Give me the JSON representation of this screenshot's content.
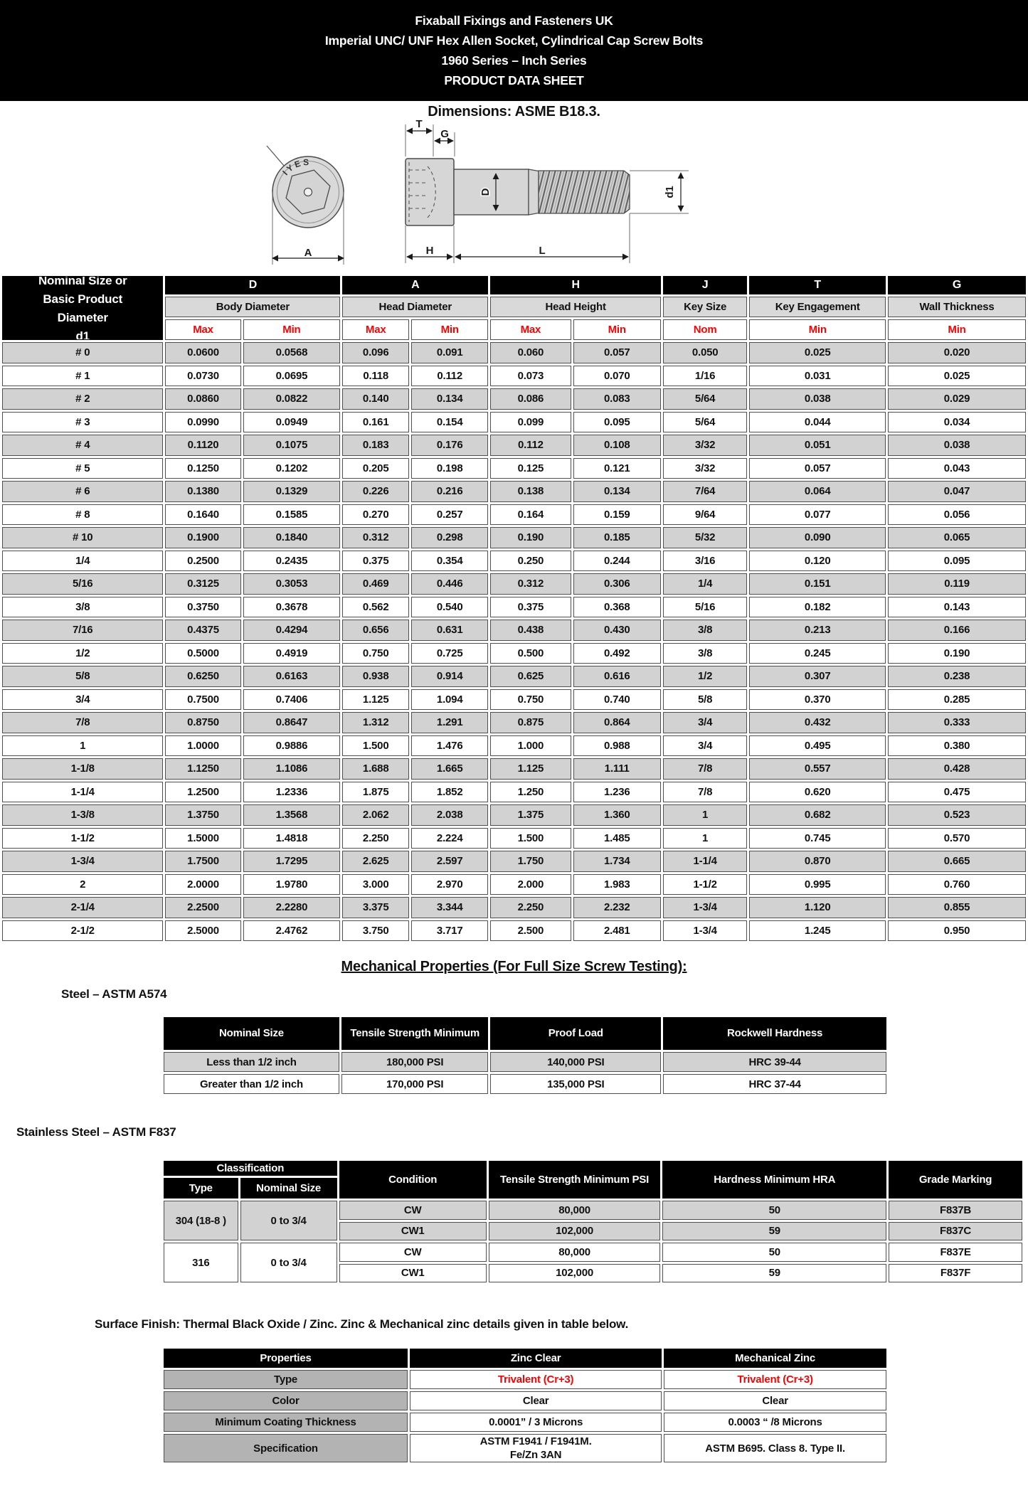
{
  "banner": {
    "lines": [
      "Fixaball Fixings and Fasteners UK",
      "Imperial UNC/ UNF Hex Allen Socket, Cylindrical Cap Screw Bolts",
      "1960 Series – Inch Series",
      "PRODUCT DATA SHEET"
    ]
  },
  "dimensions_note": "Dimensions: ASME B18.3.",
  "drawing": {
    "head_stamp": "IYES",
    "labels": {
      "t": "T",
      "g": "G",
      "d": "D",
      "d1": "d1",
      "a": "A",
      "h": "H",
      "l": "L"
    }
  },
  "main_table": {
    "corner_lines": [
      "Nominal Size or",
      "Basic Product",
      "Diameter",
      "d1"
    ],
    "groups": [
      {
        "letter": "D",
        "name": "Body Diameter",
        "subs": [
          "Max",
          "Min"
        ]
      },
      {
        "letter": "A",
        "name": "Head Diameter",
        "subs": [
          "Max",
          "Min"
        ]
      },
      {
        "letter": "H",
        "name": "Head Height",
        "subs": [
          "Max",
          "Min"
        ]
      },
      {
        "letter": "J",
        "name": "Key Size",
        "subs": [
          "Nom"
        ]
      },
      {
        "letter": "T",
        "name": "Key Engagement",
        "subs": [
          "Min"
        ]
      },
      {
        "letter": "G",
        "name": "Wall Thickness",
        "subs": [
          "Min"
        ]
      }
    ],
    "rows": [
      [
        "# 0",
        "0.0600",
        "0.0568",
        "0.096",
        "0.091",
        "0.060",
        "0.057",
        "0.050",
        "0.025",
        "0.020"
      ],
      [
        "# 1",
        "0.0730",
        "0.0695",
        "0.118",
        "0.112",
        "0.073",
        "0.070",
        "1/16",
        "0.031",
        "0.025"
      ],
      [
        "# 2",
        "0.0860",
        "0.0822",
        "0.140",
        "0.134",
        "0.086",
        "0.083",
        "5/64",
        "0.038",
        "0.029"
      ],
      [
        "# 3",
        "0.0990",
        "0.0949",
        "0.161",
        "0.154",
        "0.099",
        "0.095",
        "5/64",
        "0.044",
        "0.034"
      ],
      [
        "# 4",
        "0.1120",
        "0.1075",
        "0.183",
        "0.176",
        "0.112",
        "0.108",
        "3/32",
        "0.051",
        "0.038"
      ],
      [
        "# 5",
        "0.1250",
        "0.1202",
        "0.205",
        "0.198",
        "0.125",
        "0.121",
        "3/32",
        "0.057",
        "0.043"
      ],
      [
        "# 6",
        "0.1380",
        "0.1329",
        "0.226",
        "0.216",
        "0.138",
        "0.134",
        "7/64",
        "0.064",
        "0.047"
      ],
      [
        "# 8",
        "0.1640",
        "0.1585",
        "0.270",
        "0.257",
        "0.164",
        "0.159",
        "9/64",
        "0.077",
        "0.056"
      ],
      [
        "# 10",
        "0.1900",
        "0.1840",
        "0.312",
        "0.298",
        "0.190",
        "0.185",
        "5/32",
        "0.090",
        "0.065"
      ],
      [
        "1/4",
        "0.2500",
        "0.2435",
        "0.375",
        "0.354",
        "0.250",
        "0.244",
        "3/16",
        "0.120",
        "0.095"
      ],
      [
        "5/16",
        "0.3125",
        "0.3053",
        "0.469",
        "0.446",
        "0.312",
        "0.306",
        "1/4",
        "0.151",
        "0.119"
      ],
      [
        "3/8",
        "0.3750",
        "0.3678",
        "0.562",
        "0.540",
        "0.375",
        "0.368",
        "5/16",
        "0.182",
        "0.143"
      ],
      [
        "7/16",
        "0.4375",
        "0.4294",
        "0.656",
        "0.631",
        "0.438",
        "0.430",
        "3/8",
        "0.213",
        "0.166"
      ],
      [
        "1/2",
        "0.5000",
        "0.4919",
        "0.750",
        "0.725",
        "0.500",
        "0.492",
        "3/8",
        "0.245",
        "0.190"
      ],
      [
        "5/8",
        "0.6250",
        "0.6163",
        "0.938",
        "0.914",
        "0.625",
        "0.616",
        "1/2",
        "0.307",
        "0.238"
      ],
      [
        "3/4",
        "0.7500",
        "0.7406",
        "1.125",
        "1.094",
        "0.750",
        "0.740",
        "5/8",
        "0.370",
        "0.285"
      ],
      [
        "7/8",
        "0.8750",
        "0.8647",
        "1.312",
        "1.291",
        "0.875",
        "0.864",
        "3/4",
        "0.432",
        "0.333"
      ],
      [
        "1",
        "1.0000",
        "0.9886",
        "1.500",
        "1.476",
        "1.000",
        "0.988",
        "3/4",
        "0.495",
        "0.380"
      ],
      [
        "1-1/8",
        "1.1250",
        "1.1086",
        "1.688",
        "1.665",
        "1.125",
        "1.111",
        "7/8",
        "0.557",
        "0.428"
      ],
      [
        "1-1/4",
        "1.2500",
        "1.2336",
        "1.875",
        "1.852",
        "1.250",
        "1.236",
        "7/8",
        "0.620",
        "0.475"
      ],
      [
        "1-3/8",
        "1.3750",
        "1.3568",
        "2.062",
        "2.038",
        "1.375",
        "1.360",
        "1",
        "0.682",
        "0.523"
      ],
      [
        "1-1/2",
        "1.5000",
        "1.4818",
        "2.250",
        "2.224",
        "1.500",
        "1.485",
        "1",
        "0.745",
        "0.570"
      ],
      [
        "1-3/4",
        "1.7500",
        "1.7295",
        "2.625",
        "2.597",
        "1.750",
        "1.734",
        "1-1/4",
        "0.870",
        "0.665"
      ],
      [
        "2",
        "2.0000",
        "1.9780",
        "3.000",
        "2.970",
        "2.000",
        "1.983",
        "1-1/2",
        "0.995",
        "0.760"
      ],
      [
        "2-1/4",
        "2.2500",
        "2.2280",
        "3.375",
        "3.344",
        "2.250",
        "2.232",
        "1-3/4",
        "1.120",
        "0.855"
      ],
      [
        "2-1/2",
        "2.5000",
        "2.4762",
        "3.750",
        "3.717",
        "2.500",
        "2.481",
        "1-3/4",
        "1.245",
        "0.950"
      ]
    ]
  },
  "mechanical_heading": "Mechanical Properties (For Full Size Screw Testing): ",
  "steel": {
    "label": "Steel – ASTM A574",
    "headers": [
      "Nominal Size",
      "Tensile Strength Minimum",
      "Proof Load",
      "Rockwell Hardness"
    ],
    "rows": [
      [
        "Less than 1/2 inch",
        "180,000 PSI",
        "140,000 PSI",
        "HRC 39-44"
      ],
      [
        "Greater than 1/2 inch",
        "170,000 PSI",
        "135,000 PSI",
        "HRC 37-44"
      ]
    ]
  },
  "stainless": {
    "label": "Stainless Steel – ASTM F837",
    "headers": {
      "classification": "Classification",
      "type": "Type",
      "nominal_size": "Nominal Size",
      "condition": "Condition",
      "tensile": "Tensile Strength Minimum PSI",
      "hardness": "Hardness Minimum HRA",
      "grade": "Grade Marking"
    },
    "groups": [
      {
        "type": "304 (18-8 )",
        "nominal_size": "0 to 3/4",
        "rows": [
          [
            "CW",
            "80,000",
            "50",
            "F837B"
          ],
          [
            "CW1",
            "102,000",
            "59",
            "F837C"
          ]
        ]
      },
      {
        "type": "316",
        "nominal_size": "0 to 3/4",
        "rows": [
          [
            "CW",
            "80,000",
            "50",
            "F837E"
          ],
          [
            "CW1",
            "102,000",
            "59",
            "F837F"
          ]
        ]
      }
    ]
  },
  "surface": {
    "note": "Surface Finish: Thermal Black Oxide / Zinc. Zinc & Mechanical zinc details given in table below.",
    "headers": [
      "Properties",
      "Zinc  Clear",
      "Mechanical Zinc"
    ],
    "rows": [
      {
        "label": "Type",
        "zinc": [
          "Trivalent (Cr+3)"
        ],
        "mech": [
          "Trivalent (Cr+3)"
        ],
        "red": true
      },
      {
        "label": "Color",
        "zinc": [
          "Clear"
        ],
        "mech": [
          "Clear"
        ],
        "red": false
      },
      {
        "label": "Minimum Coating Thickness",
        "zinc": [
          "0.0001” / 3 Microns"
        ],
        "mech": [
          "0.0003 “ /8 Microns"
        ],
        "red": false
      },
      {
        "label": "Specification",
        "zinc": [
          "ASTM F1941 / F1941M.",
          "Fe/Zn 3AN"
        ],
        "mech": [
          "ASTM B695. Class 8. Type II."
        ],
        "red": false
      }
    ]
  },
  "colors": {
    "accent_red": "#ff0000",
    "row_gray": "#d2d2d2",
    "header_gray": "#d9d9d9",
    "label_gray": "#b3b3b3"
  }
}
